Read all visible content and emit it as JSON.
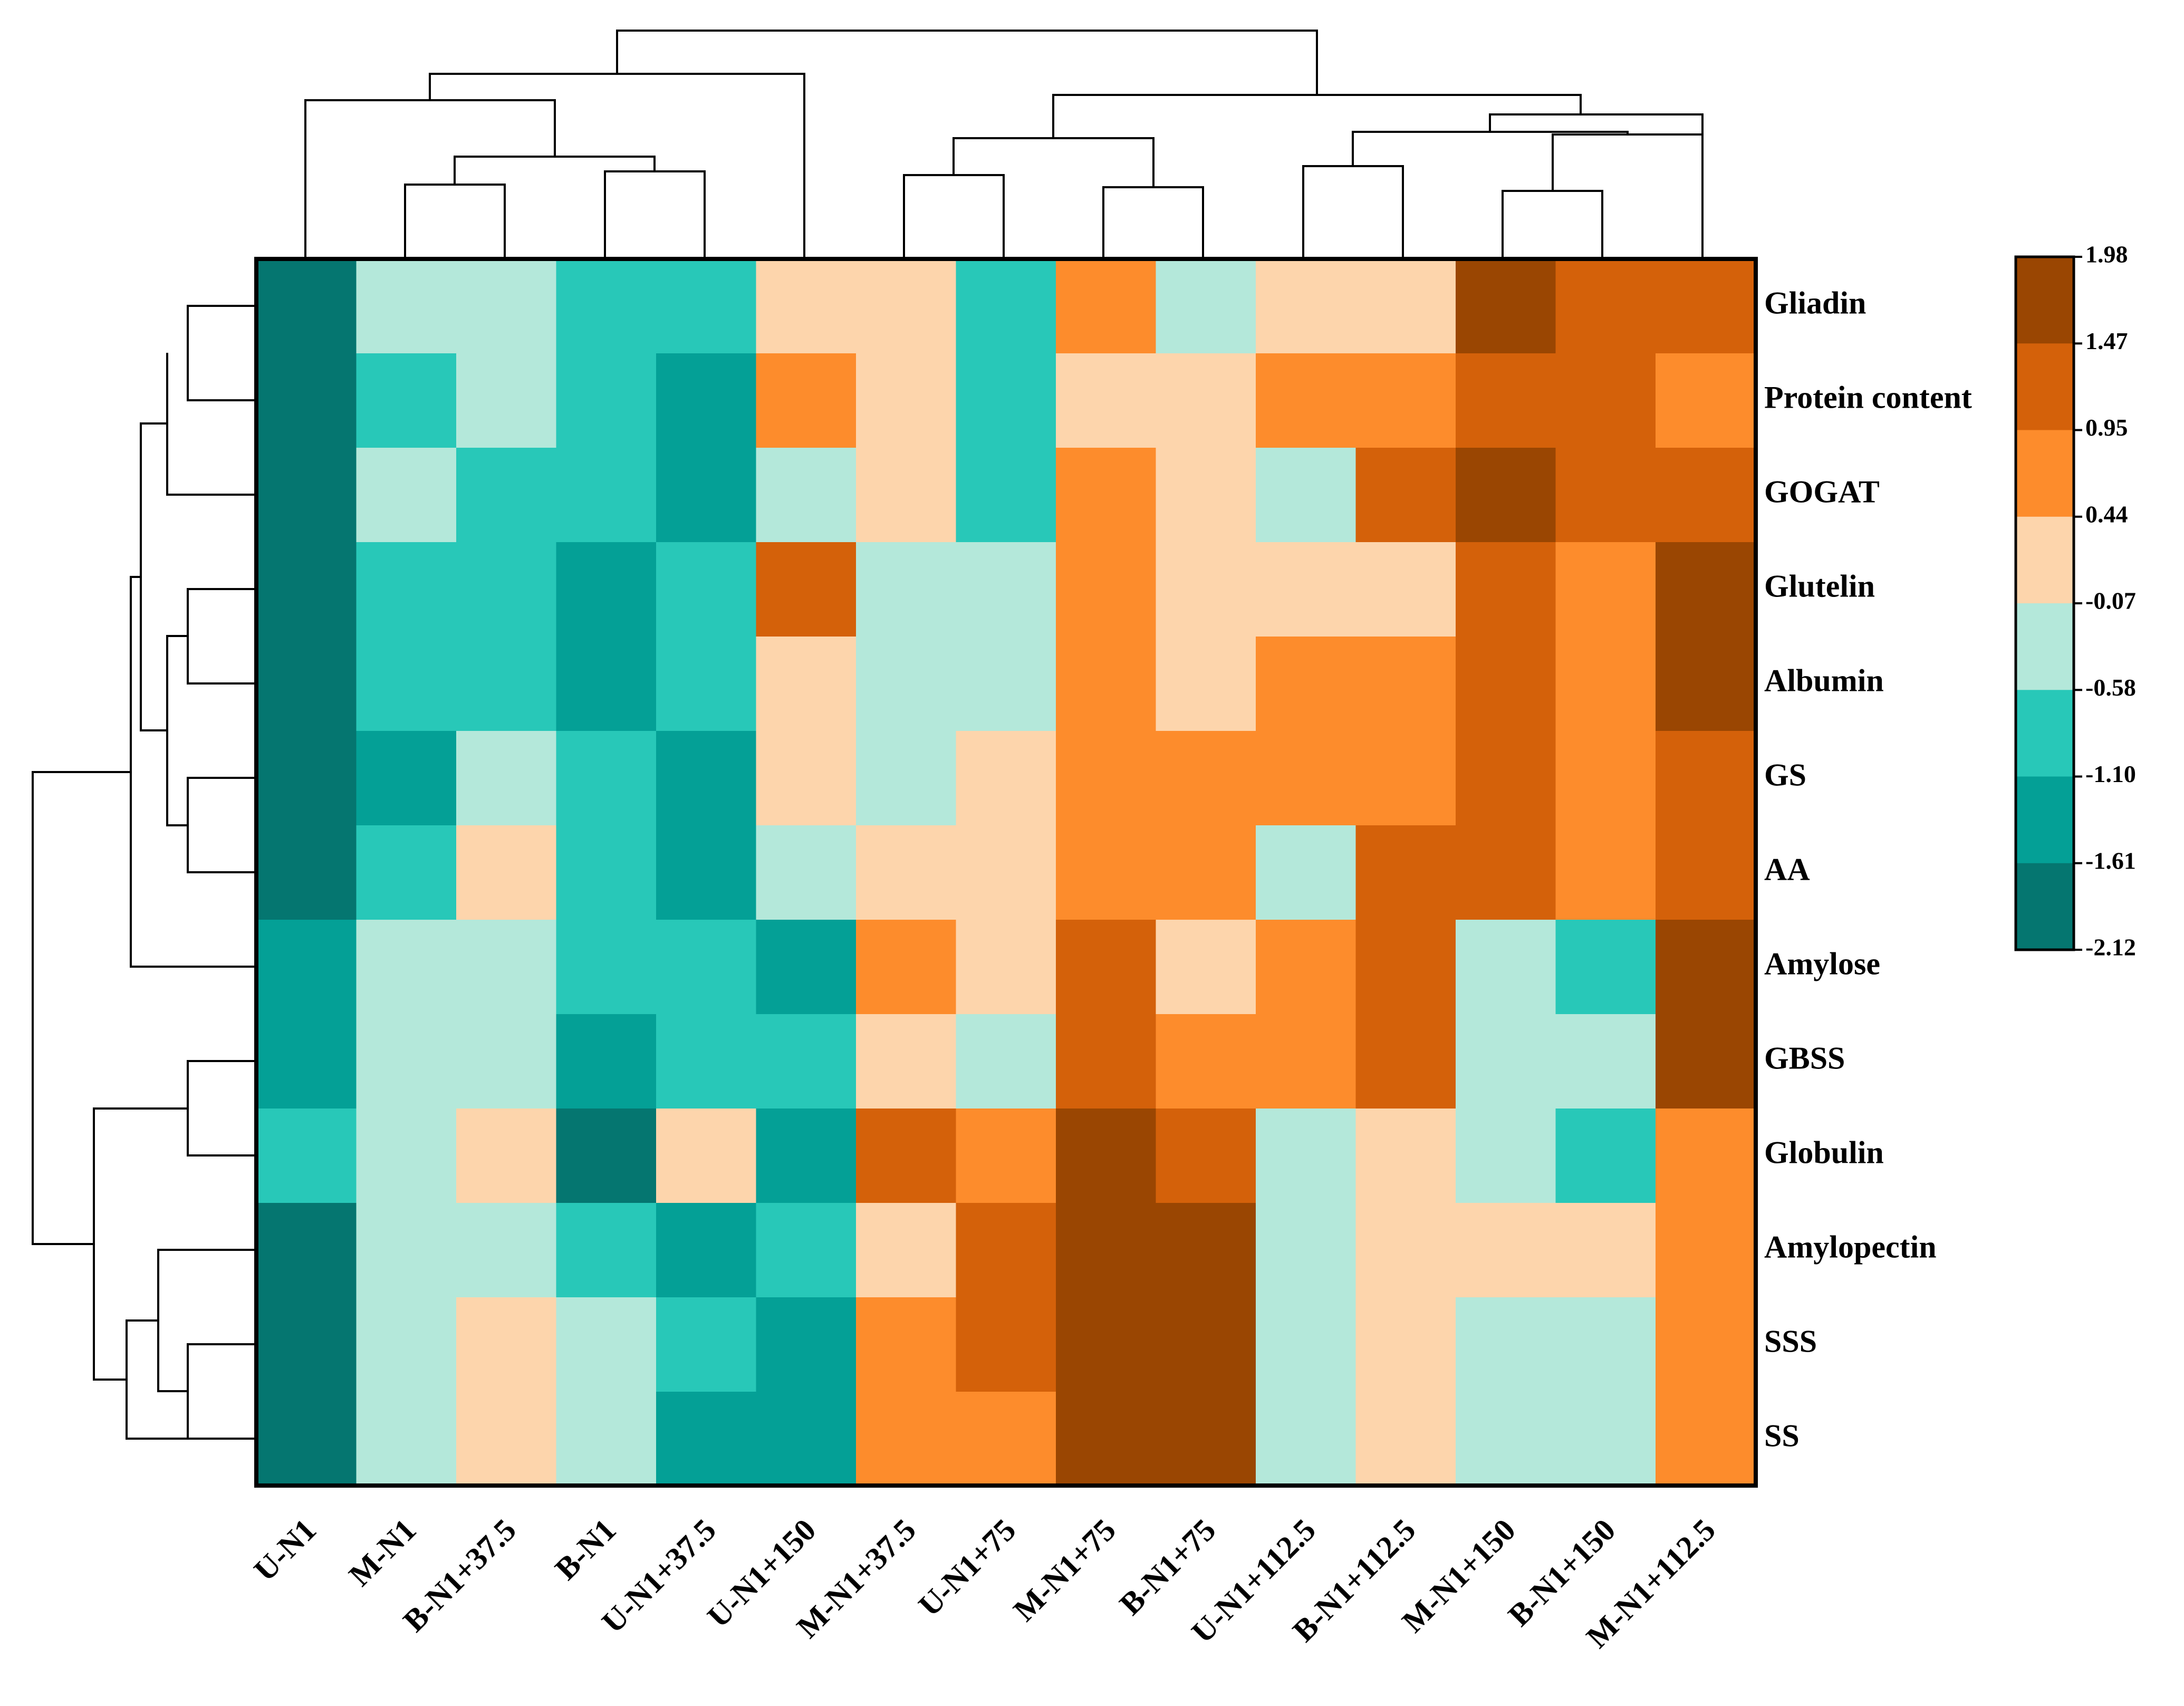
{
  "chart_data": {
    "type": "heatmap",
    "title": "",
    "columns": [
      "U-N1",
      "M-N1",
      "B-N1+37.5",
      "B-N1",
      "U-N1+37.5",
      "U-N1+150",
      "M-N1+37.5",
      "U-N1+75",
      "M-N1+75",
      "B-N1+75",
      "U-N1+112.5",
      "B-N1+112.5",
      "M-N1+150",
      "B-N1+150",
      "M-N1+112.5"
    ],
    "rows": [
      "Gliadin",
      "Protein content",
      "GOGAT",
      "Glutelin",
      "Albumin",
      "GS",
      "AA",
      "Amylose",
      "GBSS",
      "Globulin",
      "Amylopectin",
      "SSS",
      "SS"
    ],
    "bins": [
      -2.12,
      -1.61,
      -1.1,
      -0.58,
      -0.07,
      0.44,
      0.95,
      1.47,
      1.98
    ],
    "colorbar_ticks": [
      "1.98",
      "1.47",
      "0.95",
      "0.44",
      "-0.07",
      "-0.58",
      "-1.10",
      "-1.61",
      "-2.12"
    ],
    "colors": [
      "#057670",
      "#04a096",
      "#28c8b8",
      "#b4e8da",
      "#fdd5ac",
      "#fd8c2c",
      "#d4610a",
      "#9a4602"
    ],
    "values": [
      [
        -1.9,
        -0.3,
        -0.3,
        -0.8,
        -0.8,
        0.2,
        0.2,
        -0.8,
        0.7,
        -0.3,
        0.2,
        0.2,
        1.7,
        1.2,
        1.2
      ],
      [
        -1.9,
        -0.8,
        -0.3,
        -0.8,
        -1.4,
        0.7,
        0.2,
        -0.8,
        0.2,
        0.2,
        0.7,
        0.7,
        1.2,
        1.2,
        0.7
      ],
      [
        -1.9,
        -0.3,
        -0.8,
        -0.8,
        -1.4,
        -0.3,
        0.2,
        -0.8,
        0.7,
        0.2,
        -0.3,
        1.2,
        1.7,
        1.2,
        1.2
      ],
      [
        -1.9,
        -0.8,
        -0.8,
        -1.4,
        -0.8,
        1.2,
        -0.3,
        -0.3,
        0.7,
        0.2,
        0.2,
        0.2,
        1.2,
        0.7,
        1.7
      ],
      [
        -1.9,
        -0.8,
        -0.8,
        -1.4,
        -0.8,
        0.2,
        -0.3,
        -0.3,
        0.7,
        0.2,
        0.7,
        0.7,
        1.2,
        0.7,
        1.7
      ],
      [
        -1.9,
        -1.4,
        -0.3,
        -0.8,
        -1.4,
        0.2,
        -0.3,
        0.2,
        0.7,
        0.7,
        0.7,
        0.7,
        1.2,
        0.7,
        1.2
      ],
      [
        -1.9,
        -0.8,
        0.2,
        -0.8,
        -1.4,
        -0.3,
        0.2,
        0.2,
        0.7,
        0.7,
        -0.3,
        1.2,
        1.2,
        0.7,
        1.2
      ],
      [
        -1.4,
        -0.3,
        -0.3,
        -0.8,
        -0.8,
        -1.4,
        0.7,
        0.2,
        1.2,
        0.2,
        0.7,
        1.2,
        -0.3,
        -0.8,
        1.7
      ],
      [
        -1.4,
        -0.3,
        -0.3,
        -1.4,
        -0.8,
        -0.8,
        0.2,
        -0.3,
        1.2,
        0.7,
        0.7,
        1.2,
        -0.3,
        -0.3,
        1.7
      ],
      [
        -0.8,
        -0.3,
        0.2,
        -1.9,
        0.2,
        -1.4,
        1.2,
        0.7,
        1.7,
        1.2,
        -0.3,
        0.2,
        -0.3,
        -0.8,
        0.7
      ],
      [
        -1.9,
        -0.3,
        -0.3,
        -0.8,
        -1.4,
        -0.8,
        0.2,
        1.2,
        1.7,
        1.7,
        -0.3,
        0.2,
        0.2,
        0.2,
        0.7
      ],
      [
        -1.9,
        -0.3,
        0.2,
        -0.3,
        -0.8,
        -1.4,
        0.7,
        1.2,
        1.7,
        1.7,
        -0.3,
        0.2,
        -0.3,
        -0.3,
        0.7
      ],
      [
        -1.9,
        -0.3,
        0.2,
        -0.3,
        -1.4,
        -1.4,
        0.7,
        0.7,
        1.7,
        1.7,
        -0.3,
        0.2,
        -0.3,
        -0.3,
        0.7
      ]
    ],
    "xlabel": "",
    "ylabel": "",
    "legend": "right"
  }
}
